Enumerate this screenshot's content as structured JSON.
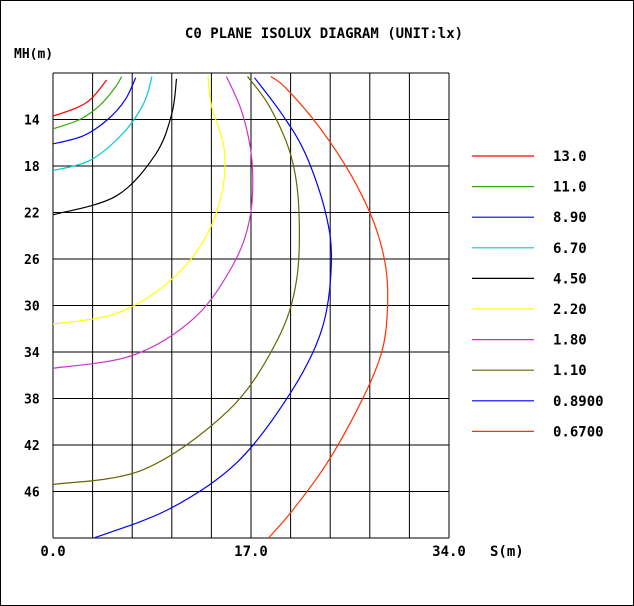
{
  "chart_data": {
    "type": "line",
    "title": "C0 PLANE ISOLUX DIAGRAM (UNIT:lx)",
    "ylabel": "MH(m)",
    "xlabel": "S(m)",
    "x_tick_labels": [
      "0.0",
      "17.0",
      "34.0"
    ],
    "y_tick_labels": [
      "14",
      "18",
      "22",
      "26",
      "30",
      "34",
      "38",
      "42",
      "46"
    ],
    "xlim": [
      0,
      34
    ],
    "ylim": [
      10,
      50
    ],
    "y_inverted": true,
    "grid": true,
    "legend_position": "right",
    "series": [
      {
        "name": "13.0",
        "color": "#ff0000",
        "points": [
          [
            0,
            13.7
          ],
          [
            2,
            13.0
          ],
          [
            3.3,
            12.2
          ],
          [
            4.6,
            10.6
          ]
        ]
      },
      {
        "name": "11.0",
        "color": "#33aa00",
        "points": [
          [
            0,
            14.8
          ],
          [
            2.3,
            14.0
          ],
          [
            4.0,
            12.8
          ],
          [
            5.3,
            11.3
          ],
          [
            5.9,
            10.3
          ]
        ]
      },
      {
        "name": "8.90",
        "color": "#0000ff",
        "points": [
          [
            0,
            16.1
          ],
          [
            2.6,
            15.4
          ],
          [
            4.7,
            14.0
          ],
          [
            6.2,
            12.3
          ],
          [
            7.1,
            10.4
          ]
        ]
      },
      {
        "name": "6.70",
        "color": "#00cccc",
        "points": [
          [
            0,
            18.4
          ],
          [
            3.2,
            17.5
          ],
          [
            6.0,
            15.2
          ],
          [
            7.8,
            12.6
          ],
          [
            8.5,
            10.3
          ]
        ]
      },
      {
        "name": "4.50",
        "color": "#000000",
        "points": [
          [
            0,
            22.2
          ],
          [
            5.4,
            20.6
          ],
          [
            8.8,
            17.0
          ],
          [
            10.2,
            13.5
          ],
          [
            10.6,
            10.5
          ]
        ]
      },
      {
        "name": "2.20",
        "color": "#ffff00",
        "points": [
          [
            0,
            31.6
          ],
          [
            5.4,
            30.7
          ],
          [
            9.8,
            28.1
          ],
          [
            12.9,
            24.5
          ],
          [
            14.5,
            20.3
          ],
          [
            14.7,
            16.5
          ],
          [
            13.6,
            12.8
          ],
          [
            13.3,
            10.2
          ]
        ]
      },
      {
        "name": "1.80",
        "color": "#cc33cc",
        "points": [
          [
            0,
            35.4
          ],
          [
            6.8,
            34.3
          ],
          [
            12.1,
            31.1
          ],
          [
            15.4,
            26.6
          ],
          [
            16.9,
            22.5
          ],
          [
            17.1,
            17.8
          ],
          [
            16.3,
            13.6
          ],
          [
            14.9,
            10.3
          ]
        ]
      },
      {
        "name": "1.10",
        "color": "#666600",
        "points": [
          [
            0,
            45.4
          ],
          [
            7.8,
            44.1
          ],
          [
            15.1,
            39.0
          ],
          [
            19.2,
            33.1
          ],
          [
            20.9,
            27.9
          ],
          [
            21.1,
            21.6
          ],
          [
            20.4,
            17.0
          ],
          [
            18.6,
            12.9
          ],
          [
            16.7,
            10.3
          ]
        ]
      },
      {
        "name": "0.8900",
        "color": "#0000ff",
        "points": [
          [
            3.5,
            50
          ],
          [
            10,
            47.5
          ],
          [
            15.8,
            43.5
          ],
          [
            20.4,
            37.5
          ],
          [
            23.1,
            32
          ],
          [
            23.9,
            26.3
          ],
          [
            23.4,
            22
          ],
          [
            21.7,
            17
          ],
          [
            19.7,
            13.6
          ],
          [
            17.3,
            10.4
          ]
        ]
      },
      {
        "name": "0.6700",
        "color": "#ff3300",
        "points": [
          [
            18.5,
            50
          ],
          [
            20.5,
            47.7
          ],
          [
            23.5,
            43.6
          ],
          [
            26.5,
            38.2
          ],
          [
            28.2,
            34.1
          ],
          [
            28.7,
            30.6
          ],
          [
            28.6,
            26.9
          ],
          [
            27.6,
            23.0
          ],
          [
            25.6,
            18.8
          ],
          [
            22.9,
            14.7
          ],
          [
            20.0,
            11.3
          ],
          [
            18.7,
            10.3
          ]
        ]
      }
    ]
  }
}
